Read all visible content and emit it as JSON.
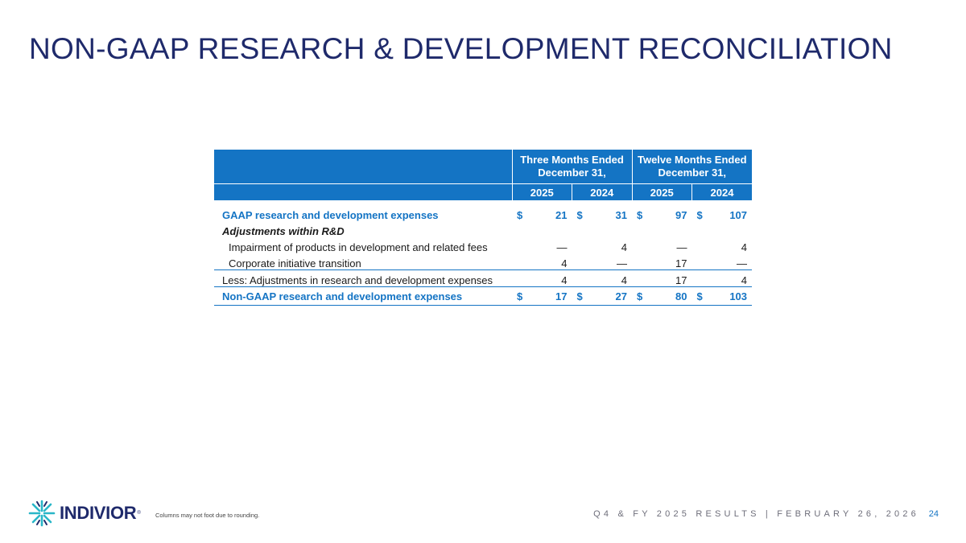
{
  "title": "NON-GAAP RESEARCH & DEVELOPMENT RECONCILIATION",
  "table": {
    "group_headers": [
      "Three Months Ended December 31,",
      "Twelve Months Ended December 31,"
    ],
    "year_headers": [
      "2025",
      "2024",
      "2025",
      "2024"
    ],
    "gaap": {
      "label": "GAAP research and development expenses",
      "cells": [
        {
          "cur": "$",
          "val": "21"
        },
        {
          "cur": "$",
          "val": "31"
        },
        {
          "cur": "$",
          "val": "97"
        },
        {
          "cur": "$",
          "val": "107"
        }
      ]
    },
    "adjustments_heading": "Adjustments within R&D",
    "impairment": {
      "label": "Impairment of products in development and related fees",
      "values": [
        "—",
        "4",
        "—",
        "4"
      ]
    },
    "corporate": {
      "label": "Corporate initiative transition",
      "values": [
        "4",
        "—",
        "17",
        "—"
      ]
    },
    "less": {
      "label": "Less: Adjustments in research and development expenses",
      "values": [
        "4",
        "4",
        "17",
        "4"
      ]
    },
    "nongaap": {
      "label": "Non-GAAP research and development expenses",
      "cells": [
        {
          "cur": "$",
          "val": "17"
        },
        {
          "cur": "$",
          "val": "27"
        },
        {
          "cur": "$",
          "val": "80"
        },
        {
          "cur": "$",
          "val": "103"
        }
      ]
    }
  },
  "footer": {
    "note": "Columns may not foot due to rounding.",
    "event": "Q4 & FY 2025 RESULTS | FEBRUARY 26, 2026",
    "page": "24",
    "logo_text": "INDIVIOR",
    "logo_mark": "®"
  },
  "colors": {
    "title": "#1f2a6b",
    "accent": "#1474c4",
    "logo_teal": "#29b6c8"
  }
}
